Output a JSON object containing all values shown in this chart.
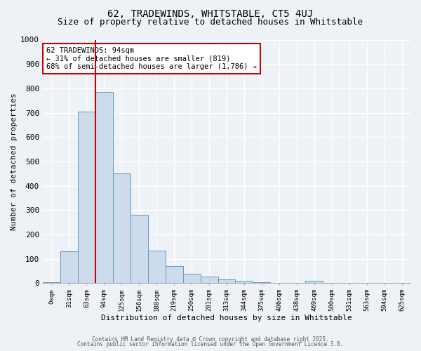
{
  "title1": "62, TRADEWINDS, WHITSTABLE, CT5 4UJ",
  "title2": "Size of property relative to detached houses in Whitstable",
  "xlabel": "Distribution of detached houses by size in Whitstable",
  "ylabel": "Number of detached properties",
  "bar_labels": [
    "0sqm",
    "31sqm",
    "63sqm",
    "94sqm",
    "125sqm",
    "156sqm",
    "188sqm",
    "219sqm",
    "250sqm",
    "281sqm",
    "313sqm",
    "344sqm",
    "375sqm",
    "406sqm",
    "438sqm",
    "469sqm",
    "500sqm",
    "531sqm",
    "563sqm",
    "594sqm",
    "625sqm"
  ],
  "bar_values": [
    5,
    130,
    705,
    785,
    450,
    280,
    133,
    70,
    40,
    27,
    15,
    10,
    5,
    2,
    0,
    10,
    0,
    0,
    0,
    0,
    0
  ],
  "bar_color": "#ccdcec",
  "bar_edgecolor": "#6699bb",
  "vline_index": 3,
  "vline_color": "#cc0000",
  "annotation_text": "62 TRADEWINDS: 94sqm\n← 31% of detached houses are smaller (819)\n68% of semi-detached houses are larger (1,786) →",
  "annotation_box_color": "#ffffff",
  "annotation_box_edgecolor": "#cc0000",
  "ylim": [
    0,
    1000
  ],
  "yticks": [
    0,
    100,
    200,
    300,
    400,
    500,
    600,
    700,
    800,
    900,
    1000
  ],
  "bg_color": "#eef2f7",
  "plot_bg_color": "#eef2f7",
  "footer1": "Contains HM Land Registry data © Crown copyright and database right 2025.",
  "footer2": "Contains public sector information licensed under the Open Government Licence 3.0.",
  "title_fontsize": 10,
  "subtitle_fontsize": 9
}
